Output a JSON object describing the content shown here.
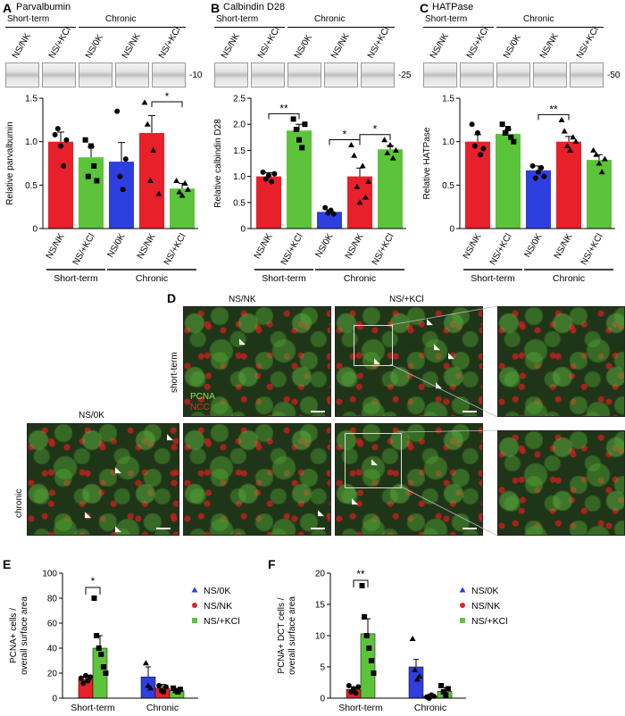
{
  "panels": {
    "A": {
      "letter": "A",
      "title": "Parvalbumin",
      "mw": "-10"
    },
    "B": {
      "letter": "B",
      "title": "Calbindin D28",
      "mw": "-25"
    },
    "C": {
      "letter": "C",
      "title": "HATPase",
      "mw": "-50"
    },
    "D": {
      "letter": "D"
    },
    "E": {
      "letter": "E"
    },
    "F": {
      "letter": "F"
    }
  },
  "blot_headers": {
    "short_term": "Short-term",
    "chronic": "Chronic",
    "lanes_abc": [
      "NS/NK",
      "NS/+KCl",
      "NS/0K",
      "NS/NK",
      "NS/+KCl"
    ]
  },
  "colors": {
    "NS/NK": "#e8202a",
    "NS/+KCl": "#5cc43a",
    "NS/0K": "#2e3fe0",
    "sem": "#000000"
  },
  "micrograph": {
    "col_labels": {
      "nsnk": "NS/NK",
      "nskcl": "NS/+KCl",
      "ns0k": "NS/0K"
    },
    "row_labels": {
      "short": "short-term",
      "chronic": "chronic"
    },
    "stain_pcna": "PCNA",
    "stain_ncc": "NCC"
  },
  "chart_data": [
    {
      "type": "bar",
      "panel": "A",
      "ylabel": "Relative parvalbumin",
      "ylim": [
        0,
        1.5
      ],
      "yticks": [
        0,
        0.5,
        1.0,
        1.5
      ],
      "ytick_labels": [
        "0",
        "0.5",
        "1.0",
        "1.5"
      ],
      "categories": [
        "NS/NK",
        "NS/+KCl",
        "NS/0K",
        "NS/NK",
        "NS/+KCl"
      ],
      "groups": [
        "Short-term",
        "Chronic"
      ],
      "series_colors": [
        "#e8202a",
        "#5cc43a",
        "#2e3fe0",
        "#e8202a",
        "#5cc43a"
      ],
      "values": [
        1.0,
        0.82,
        0.77,
        1.1,
        0.46
      ],
      "sem": [
        0.11,
        0.12,
        0.22,
        0.2,
        0.06
      ],
      "significance": [
        {
          "from": 3,
          "to": 4,
          "label": "*"
        }
      ],
      "points": [
        [
          1.08,
          1.15,
          0.95,
          0.72,
          1.02
        ],
        [
          1.02,
          0.6,
          0.95,
          0.72,
          0.55
        ],
        [
          1.35,
          0.6,
          0.45,
          0.8
        ],
        [
          1.45,
          1.2,
          0.55,
          0.9,
          1.7,
          0.4
        ],
        [
          0.55,
          0.42,
          0.38,
          0.52,
          0.45
        ]
      ]
    },
    {
      "type": "bar",
      "panel": "B",
      "ylabel": "Relative calbindin D28",
      "ylim": [
        0,
        2.5
      ],
      "yticks": [
        0,
        0.5,
        1.0,
        1.5,
        2.0,
        2.5
      ],
      "ytick_labels": [
        "0",
        "0.5",
        "1.0",
        "1.5",
        "2.0",
        "2.5"
      ],
      "categories": [
        "NS/NK",
        "NS/+KCl",
        "NS/0K",
        "NS/NK",
        "NS/+KCl"
      ],
      "groups": [
        "Short-term",
        "Chronic"
      ],
      "series_colors": [
        "#e8202a",
        "#5cc43a",
        "#2e3fe0",
        "#e8202a",
        "#5cc43a"
      ],
      "values": [
        1.0,
        1.88,
        0.32,
        1.0,
        1.52
      ],
      "sem": [
        0.07,
        0.12,
        0.04,
        0.16,
        0.07
      ],
      "significance": [
        {
          "from": 0,
          "to": 1,
          "label": "**"
        },
        {
          "from": 2,
          "to": 3,
          "label": "*"
        },
        {
          "from": 3,
          "to": 4,
          "label": "*"
        }
      ],
      "points": [
        [
          1.08,
          0.95,
          1.02,
          0.9,
          1.05
        ],
        [
          2.1,
          1.9,
          1.7,
          1.55,
          2.0
        ],
        [
          0.4,
          0.3,
          0.35,
          0.28
        ],
        [
          1.6,
          1.4,
          0.8,
          0.5,
          1.2,
          0.6,
          0.9
        ],
        [
          1.7,
          1.45,
          1.6,
          1.35,
          1.5
        ]
      ]
    },
    {
      "type": "bar",
      "panel": "C",
      "ylabel": "Relative HATPase",
      "ylim": [
        0,
        1.5
      ],
      "yticks": [
        0,
        0.5,
        1.0,
        1.5
      ],
      "ytick_labels": [
        "0",
        "0.5",
        "1.0",
        "1.5"
      ],
      "categories": [
        "NS/NK",
        "NS/+KCl",
        "NS/0K",
        "NS/NK",
        "NS/+KCl"
      ],
      "groups": [
        "Short-term",
        "Chronic"
      ],
      "series_colors": [
        "#e8202a",
        "#5cc43a",
        "#2e3fe0",
        "#e8202a",
        "#5cc43a"
      ],
      "values": [
        1.0,
        1.09,
        0.67,
        1.0,
        0.79
      ],
      "sem": [
        0.08,
        0.05,
        0.05,
        0.06,
        0.06
      ],
      "significance": [
        {
          "from": 2,
          "to": 3,
          "label": "**"
        }
      ],
      "points": [
        [
          1.2,
          0.95,
          1.1,
          0.85,
          0.92
        ],
        [
          1.2,
          1.1,
          1.15,
          1.05,
          1.0
        ],
        [
          0.72,
          0.58,
          0.65,
          0.7,
          0.6
        ],
        [
          1.25,
          1.12,
          0.95,
          0.9,
          1.05,
          1.0
        ],
        [
          0.9,
          0.85,
          0.75,
          0.65,
          0.8
        ]
      ]
    },
    {
      "type": "bar",
      "panel": "E",
      "ylabel": "PCNA+ cells / overall surface area",
      "ylim": [
        0,
        100
      ],
      "yticks": [
        0,
        20,
        40,
        60,
        80,
        100
      ],
      "ytick_labels": [
        "0",
        "20",
        "40",
        "60",
        "80",
        "100"
      ],
      "groups": [
        "Short-term",
        "Chronic"
      ],
      "series": [
        {
          "name": "NS/0K",
          "marker": "triangle",
          "color": "#2e3fe0",
          "values": [
            null,
            17
          ],
          "sem": [
            null,
            8
          ]
        },
        {
          "name": "NS/NK",
          "marker": "circle",
          "color": "#e8202a",
          "values": [
            15,
            8
          ],
          "sem": [
            2,
            3
          ]
        },
        {
          "name": "NS/+KCl",
          "marker": "square",
          "color": "#5cc43a",
          "values": [
            40,
            6
          ],
          "sem": [
            10,
            1
          ]
        }
      ],
      "significance": [
        {
          "label": "*"
        }
      ],
      "points": {
        "NS/0K": [
          [],
          [
            28,
            10,
            8
          ]
        ],
        "NS/NK": [
          [
            16,
            12,
            18,
            14,
            17
          ],
          [
            10,
            6,
            5,
            9
          ]
        ],
        "NS/+KCl": [
          [
            80,
            50,
            40,
            35,
            25,
            20
          ],
          [
            8,
            6,
            5,
            7
          ]
        ]
      }
    },
    {
      "type": "bar",
      "panel": "F",
      "ylabel": "PCNA+ DCT cells / overall surface area",
      "ylim": [
        0,
        20
      ],
      "yticks": [
        0,
        5,
        10,
        15,
        20
      ],
      "ytick_labels": [
        "0",
        "5",
        "10",
        "15",
        "20"
      ],
      "groups": [
        "Short-term",
        "Chronic"
      ],
      "series": [
        {
          "name": "NS/0K",
          "marker": "triangle",
          "color": "#2e3fe0",
          "values": [
            null,
            5
          ],
          "sem": [
            null,
            1.2
          ]
        },
        {
          "name": "NS/NK",
          "marker": "circle",
          "color": "#e8202a",
          "values": [
            1.4,
            0.3
          ],
          "sem": [
            0.4,
            0.3
          ]
        },
        {
          "name": "NS/+KCl",
          "marker": "square",
          "color": "#5cc43a",
          "values": [
            10.3,
            1.1
          ],
          "sem": [
            2.4,
            0.6
          ]
        }
      ],
      "significance": [
        {
          "label": "**"
        }
      ],
      "points": {
        "NS/0K": [
          [],
          [
            9.5,
            4.5,
            3,
            3.5
          ]
        ],
        "NS/NK": [
          [
            2,
            1,
            1.5,
            0.8,
            1.8
          ],
          [
            0.2,
            0,
            0.5,
            0.3
          ]
        ],
        "NS/+KCl": [
          [
            18,
            13,
            10,
            8,
            6,
            4
          ],
          [
            2,
            1,
            0.5,
            1.5
          ]
        ]
      }
    }
  ]
}
